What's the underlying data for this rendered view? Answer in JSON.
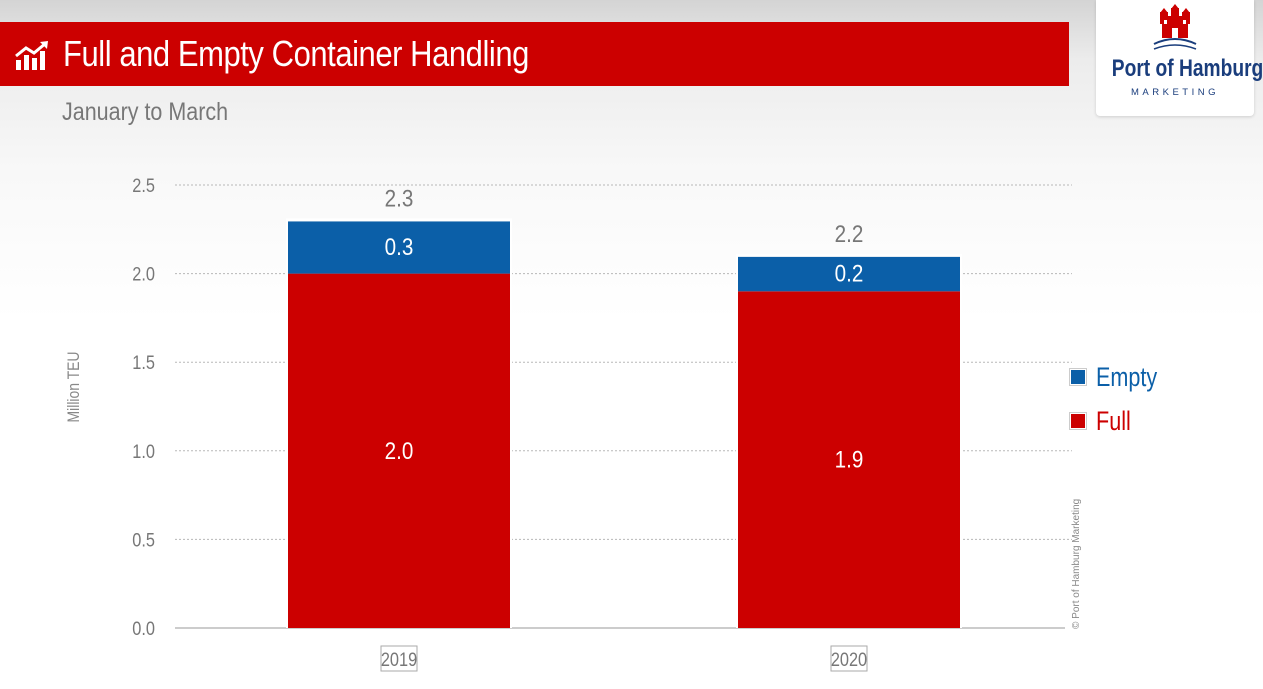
{
  "header": {
    "title": "Full and Empty Container Handling",
    "subtitle": "January to March",
    "icon": "trend-chart-icon"
  },
  "logo": {
    "name": "Port of Hamburg",
    "subtitle": "MARKETING",
    "icon": "hamburg-castle-icon"
  },
  "copyright": "© Port of Hamburg Marketing",
  "colors": {
    "header_bg": "#cc0000",
    "full": "#cc0000",
    "empty": "#0b5fa8",
    "logo_text": "#1a3d7c"
  },
  "chart_data": {
    "type": "bar",
    "stacked": true,
    "categories": [
      "2019",
      "2020"
    ],
    "series": [
      {
        "name": "Full",
        "values": [
          2.0,
          1.9
        ],
        "labels": [
          "2.0",
          "1.9"
        ],
        "color": "#cc0000"
      },
      {
        "name": "Empty",
        "values": [
          0.3,
          0.2
        ],
        "labels": [
          "0.3",
          "0.2"
        ],
        "color": "#0b5fa8"
      }
    ],
    "totals": [
      2.3,
      2.2
    ],
    "total_labels": [
      "2.3",
      "2.2"
    ],
    "ylabel": "Million TEU",
    "ylim": [
      0,
      2.5
    ],
    "yticks": [
      "0.0",
      "0.5",
      "1.0",
      "1.5",
      "2.0",
      "2.5"
    ],
    "grid": true,
    "legend_position": "right",
    "legend": [
      {
        "name": "Empty",
        "color": "#0b5fa8"
      },
      {
        "name": "Full",
        "color": "#cc0000"
      }
    ]
  }
}
